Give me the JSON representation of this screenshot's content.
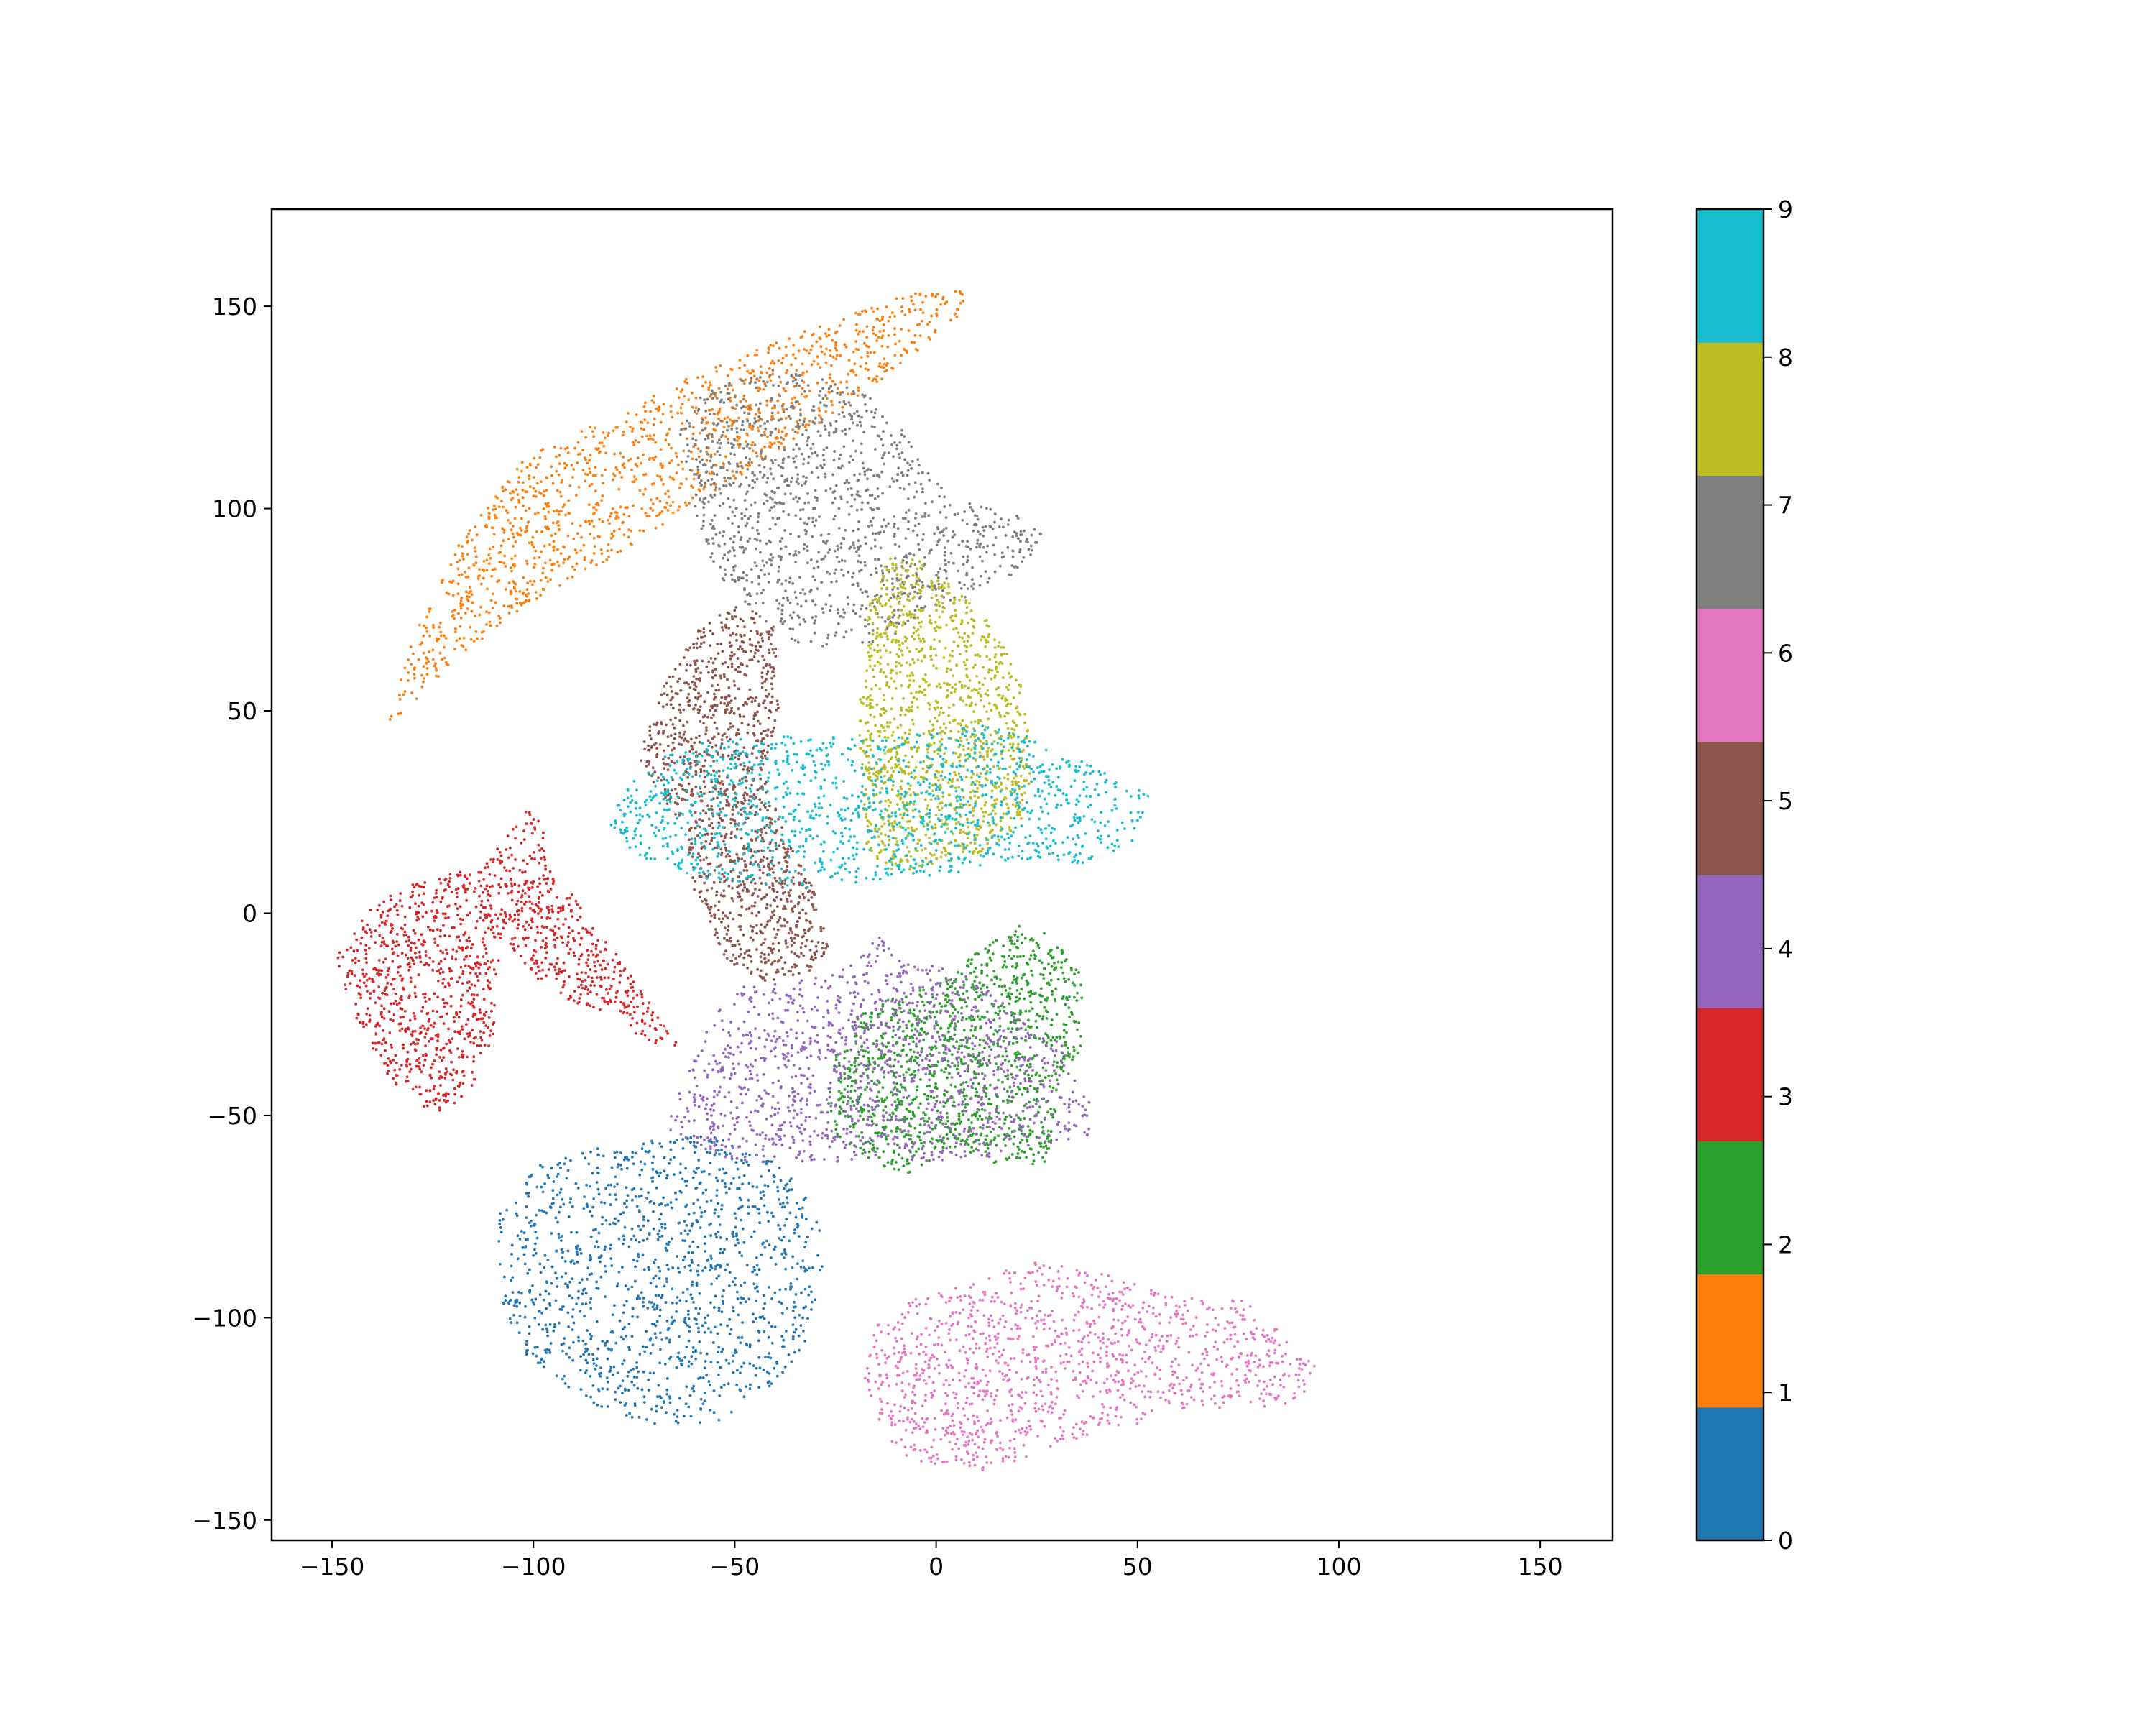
{
  "chart_data": {
    "type": "scatter",
    "title": "",
    "xlabel": "",
    "ylabel": "",
    "xlim": [
      -165,
      168
    ],
    "ylim": [
      -155,
      174
    ],
    "xticks": [
      -150,
      -100,
      -50,
      0,
      50,
      100,
      150
    ],
    "yticks": [
      -150,
      -100,
      -50,
      0,
      50,
      100,
      150
    ],
    "xtick_labels": [
      "−150",
      "−100",
      "−50",
      "0",
      "50",
      "100",
      "150"
    ],
    "ytick_labels": [
      "−150",
      "−100",
      "−50",
      "0",
      "50",
      "100",
      "150"
    ],
    "grid": false,
    "colorbar": {
      "colormap": "tab10",
      "range": [
        0,
        9
      ],
      "ticks": [
        0,
        1,
        2,
        3,
        4,
        5,
        6,
        7,
        8,
        9
      ],
      "tick_labels": [
        "0",
        "1",
        "2",
        "3",
        "4",
        "5",
        "6",
        "7",
        "8",
        "9"
      ],
      "colors": [
        "#1f77b4",
        "#ff7f0e",
        "#2ca02c",
        "#d62728",
        "#9467bd",
        "#8c564b",
        "#e377c2",
        "#7f7f7f",
        "#bcbd22",
        "#17becf"
      ]
    },
    "clusters": [
      {
        "label": 0,
        "color": "#1f77b4",
        "outline": [
          [
            -108,
            -70
          ],
          [
            -98,
            -62
          ],
          [
            -85,
            -58
          ],
          [
            -70,
            -56
          ],
          [
            -55,
            -55
          ],
          [
            -42,
            -60
          ],
          [
            -33,
            -68
          ],
          [
            -28,
            -80
          ],
          [
            -28,
            -95
          ],
          [
            -33,
            -108
          ],
          [
            -42,
            -118
          ],
          [
            -55,
            -126
          ],
          [
            -68,
            -127
          ],
          [
            -82,
            -123
          ],
          [
            -95,
            -115
          ],
          [
            -103,
            -108
          ],
          [
            -108,
            -95
          ],
          [
            -109,
            -82
          ]
        ]
      },
      {
        "label": 1,
        "color": "#ff7f0e",
        "outline": [
          [
            -137,
            45
          ],
          [
            -130,
            68
          ],
          [
            -118,
            92
          ],
          [
            -103,
            112
          ],
          [
            -83,
            122
          ],
          [
            -60,
            133
          ],
          [
            -35,
            143
          ],
          [
            -10,
            152
          ],
          [
            8,
            157
          ],
          [
            8,
            149
          ],
          [
            -8,
            136
          ],
          [
            -30,
            120
          ],
          [
            -55,
            104
          ],
          [
            -80,
            88
          ],
          [
            -102,
            76
          ],
          [
            -120,
            62
          ]
        ]
      },
      {
        "label": 2,
        "color": "#2ca02c",
        "outline": [
          [
            -27,
            -48
          ],
          [
            -24,
            -30
          ],
          [
            -15,
            -22
          ],
          [
            0,
            -18
          ],
          [
            12,
            -8
          ],
          [
            20,
            -3
          ],
          [
            28,
            -5
          ],
          [
            36,
            -15
          ],
          [
            37,
            -32
          ],
          [
            32,
            -40
          ],
          [
            30,
            -50
          ],
          [
            28,
            -62
          ],
          [
            15,
            -62
          ],
          [
            5,
            -58
          ],
          [
            -8,
            -65
          ],
          [
            -18,
            -60
          ],
          [
            -25,
            -55
          ]
        ]
      },
      {
        "label": 3,
        "color": "#d62728",
        "outline": [
          [
            -149,
            -10
          ],
          [
            -140,
            2
          ],
          [
            -128,
            8
          ],
          [
            -112,
            12
          ],
          [
            -102,
            25
          ],
          [
            -97,
            27
          ],
          [
            -97,
            12
          ],
          [
            -88,
            2
          ],
          [
            -76,
            -15
          ],
          [
            -66,
            -30
          ],
          [
            -63,
            -33
          ],
          [
            -72,
            -32
          ],
          [
            -82,
            -25
          ],
          [
            -95,
            -20
          ],
          [
            -103,
            -12
          ],
          [
            -108,
            -5
          ],
          [
            -110,
            -30
          ],
          [
            -115,
            -45
          ],
          [
            -125,
            -50
          ],
          [
            -135,
            -42
          ],
          [
            -142,
            -30
          ],
          [
            -147,
            -20
          ]
        ]
      },
      {
        "label": 4,
        "color": "#9467bd",
        "outline": [
          [
            -67,
            -53
          ],
          [
            -62,
            -40
          ],
          [
            -55,
            -25
          ],
          [
            -48,
            -18
          ],
          [
            -25,
            -15
          ],
          [
            -14,
            -6
          ],
          [
            -8,
            -12
          ],
          [
            4,
            -13
          ],
          [
            23,
            -25
          ],
          [
            32,
            -32
          ],
          [
            38,
            -45
          ],
          [
            38,
            -55
          ],
          [
            28,
            -58
          ],
          [
            15,
            -60
          ],
          [
            0,
            -62
          ],
          [
            -12,
            -60
          ],
          [
            -25,
            -62
          ],
          [
            -40,
            -62
          ],
          [
            -55,
            -60
          ]
        ]
      },
      {
        "label": 5,
        "color": "#8c564b",
        "outline": [
          [
            -74,
            38
          ],
          [
            -68,
            56
          ],
          [
            -58,
            72
          ],
          [
            -47,
            77
          ],
          [
            -40,
            70
          ],
          [
            -39,
            50
          ],
          [
            -43,
            35
          ],
          [
            -37,
            18
          ],
          [
            -30,
            5
          ],
          [
            -26,
            -8
          ],
          [
            -32,
            -15
          ],
          [
            -42,
            -17
          ],
          [
            -52,
            -12
          ],
          [
            -60,
            5
          ],
          [
            -62,
            20
          ],
          [
            -69,
            30
          ]
        ]
      },
      {
        "label": 6,
        "color": "#e377c2",
        "outline": [
          [
            -18,
            -115
          ],
          [
            -15,
            -102
          ],
          [
            -5,
            -95
          ],
          [
            12,
            -90
          ],
          [
            25,
            -86
          ],
          [
            45,
            -90
          ],
          [
            60,
            -95
          ],
          [
            75,
            -95
          ],
          [
            85,
            -102
          ],
          [
            94,
            -112
          ],
          [
            90,
            -122
          ],
          [
            75,
            -122
          ],
          [
            55,
            -125
          ],
          [
            35,
            -130
          ],
          [
            12,
            -138
          ],
          [
            -8,
            -135
          ],
          [
            -15,
            -125
          ]
        ]
      },
      {
        "label": 7,
        "color": "#7f7f7f",
        "outline": [
          [
            -64,
            118
          ],
          [
            -60,
            127
          ],
          [
            -50,
            132
          ],
          [
            -40,
            135
          ],
          [
            -27,
            133
          ],
          [
            -17,
            128
          ],
          [
            -10,
            122
          ],
          [
            -3,
            110
          ],
          [
            5,
            102
          ],
          [
            18,
            99
          ],
          [
            26,
            96
          ],
          [
            26,
            90
          ],
          [
            18,
            83
          ],
          [
            8,
            78
          ],
          [
            -4,
            72
          ],
          [
            -12,
            68
          ],
          [
            -23,
            65
          ],
          [
            -35,
            67
          ],
          [
            -47,
            75
          ],
          [
            -55,
            85
          ],
          [
            -60,
            100
          ]
        ]
      },
      {
        "label": 8,
        "color": "#bcbd22",
        "outline": [
          [
            -19,
            55
          ],
          [
            -17,
            75
          ],
          [
            -12,
            88
          ],
          [
            -5,
            88
          ],
          [
            5,
            80
          ],
          [
            15,
            70
          ],
          [
            22,
            55
          ],
          [
            24,
            35
          ],
          [
            21,
            22
          ],
          [
            12,
            15
          ],
          [
            0,
            12
          ],
          [
            -10,
            10
          ],
          [
            -17,
            15
          ],
          [
            -19,
            30
          ]
        ]
      },
      {
        "label": 9,
        "color": "#17becf",
        "outline": [
          [
            -81,
            22
          ],
          [
            -76,
            35
          ],
          [
            -65,
            42
          ],
          [
            -50,
            43
          ],
          [
            -30,
            44
          ],
          [
            -15,
            43
          ],
          [
            0,
            45
          ],
          [
            15,
            47
          ],
          [
            25,
            43
          ],
          [
            35,
            40
          ],
          [
            45,
            33
          ],
          [
            53,
            30
          ],
          [
            52,
            20
          ],
          [
            45,
            15
          ],
          [
            35,
            12
          ],
          [
            20,
            13
          ],
          [
            5,
            10
          ],
          [
            -15,
            8
          ],
          [
            -35,
            6
          ],
          [
            -55,
            8
          ],
          [
            -70,
            12
          ],
          [
            -78,
            17
          ]
        ]
      }
    ]
  }
}
